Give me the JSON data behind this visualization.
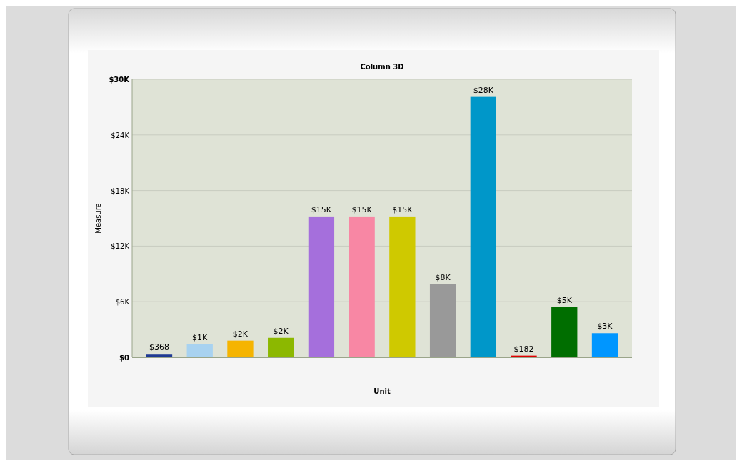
{
  "chart_data": {
    "type": "bar",
    "title": "Column 3D",
    "xlabel": "Unit",
    "ylabel": "Measure",
    "categories": [
      null,
      null,
      null,
      null,
      null,
      null,
      null,
      null,
      null,
      null,
      null,
      null
    ],
    "values": [
      368,
      1400,
      1800,
      2100,
      15200,
      15200,
      15200,
      7900,
      28100,
      182,
      5400,
      2600
    ],
    "colors": [
      "#1f3a93",
      "#a8d2f0",
      "#f5b400",
      "#8cb800",
      "#a56fdc",
      "#f887a4",
      "#cfc900",
      "#999999",
      "#0097c9",
      "#e00000",
      "#006e00",
      "#0096ff"
    ],
    "value_labels": [
      "$368",
      "$1K",
      "$2K",
      "$2K",
      "$15K",
      "$15K",
      "$15K",
      "$8K",
      "$28K",
      "$182",
      "$5K",
      "$3K"
    ],
    "ylim": [
      0,
      30000
    ],
    "yticks": [
      {
        "value": 0,
        "label": "$0"
      },
      {
        "value": 6000,
        "label": "$6K"
      },
      {
        "value": 12000,
        "label": "$12K"
      },
      {
        "value": 18000,
        "label": "$18K"
      },
      {
        "value": 24000,
        "label": "$24K"
      },
      {
        "value": 30000,
        "label": "$30K"
      }
    ],
    "grid": "y"
  }
}
